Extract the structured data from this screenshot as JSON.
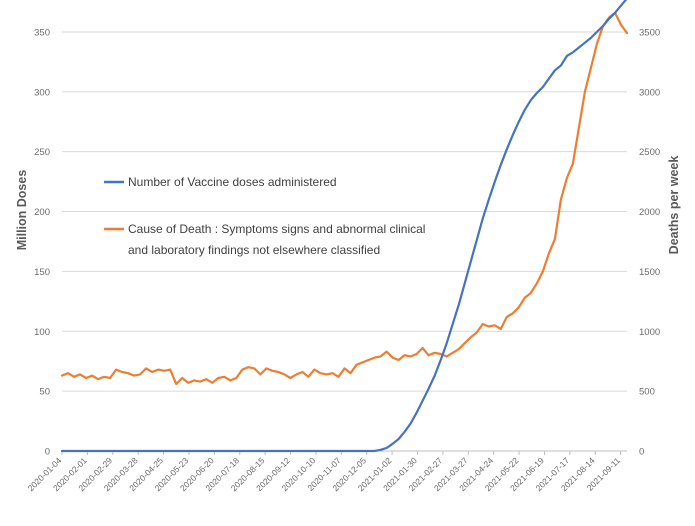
{
  "chart_data": {
    "type": "line",
    "title": "",
    "ylabel_left": "Million Doses",
    "ylabel_right": "Deaths per week",
    "ylim_left": [
      0,
      370
    ],
    "ylim_right": [
      0,
      3700
    ],
    "left_ticks": [
      0,
      50,
      100,
      150,
      200,
      250,
      300,
      350
    ],
    "right_ticks": [
      0,
      500,
      1000,
      1500,
      2000,
      2500,
      3000,
      3500
    ],
    "x_start": "2020-01-04",
    "x_end": "2021-09-18",
    "x_tick_labels": [
      "2020-01-04",
      "2020-02-01",
      "2020-02-29",
      "2020-03-28",
      "2020-04-25",
      "2020-05-23",
      "2020-06-20",
      "2020-07-18",
      "2020-08-15",
      "2020-09-12",
      "2020-10-10",
      "2020-11-07",
      "2020-12-05",
      "2021-01-02",
      "2021-01-30",
      "2021-02-27",
      "2021-03-27",
      "2021-04-24",
      "2021-05-22",
      "2021-06-19",
      "2021-07-17",
      "2021-08-14",
      "2021-09-11"
    ],
    "legend_placement": "center-left",
    "colors": {
      "vaccine": "#4472c4",
      "deaths": "#ed7d31",
      "grid": "#d9d9d9",
      "axis": "#bfbfbf"
    },
    "series": [
      {
        "name": "Number of Vaccine doses administered",
        "legend_lines": [
          "Number of Vaccine doses administered"
        ],
        "axis": "left",
        "values": [
          0,
          0,
          0,
          0,
          0,
          0,
          0,
          0,
          0,
          0,
          0,
          0,
          0,
          0,
          0,
          0,
          0,
          0,
          0,
          0,
          0,
          0,
          0,
          0,
          0,
          0,
          0,
          0,
          0,
          0,
          0,
          0,
          0,
          0,
          0,
          0,
          0,
          0,
          0,
          0,
          0,
          0,
          0,
          0,
          0,
          0,
          0,
          0,
          0,
          0,
          0,
          0,
          0,
          1,
          2.5,
          6,
          10,
          16,
          23,
          32,
          42,
          52,
          63,
          76,
          90,
          106,
          122,
          140,
          158,
          176,
          194,
          210,
          225,
          239,
          252,
          264,
          275,
          285,
          293,
          299,
          304,
          311,
          318,
          322,
          330,
          333,
          337,
          341,
          345,
          350,
          355,
          361,
          366,
          372,
          378
        ]
      },
      {
        "name": "Cause of Death : Symptoms signs and abnormal clinical and laboratory findings not elsewhere classified",
        "legend_lines": [
          "Cause of Death : Symptoms signs and abnormal clinical",
          "and laboratory findings not elsewhere classified"
        ],
        "axis": "right",
        "values": [
          630,
          650,
          620,
          640,
          610,
          630,
          600,
          620,
          610,
          680,
          660,
          650,
          630,
          640,
          690,
          660,
          680,
          670,
          680,
          560,
          610,
          570,
          590,
          580,
          600,
          570,
          610,
          620,
          590,
          610,
          680,
          700,
          690,
          640,
          690,
          670,
          660,
          640,
          610,
          640,
          660,
          620,
          680,
          650,
          640,
          650,
          620,
          690,
          650,
          720,
          740,
          760,
          780,
          790,
          830,
          780,
          760,
          800,
          790,
          810,
          860,
          800,
          820,
          810,
          790,
          820,
          850,
          900,
          950,
          990,
          1060,
          1040,
          1050,
          1020,
          1120,
          1150,
          1200,
          1280,
          1320,
          1400,
          1500,
          1650,
          1770,
          2100,
          2280,
          2400,
          2700,
          3000,
          3200,
          3400,
          3550,
          3620,
          3660,
          3560,
          3490
        ]
      }
    ]
  }
}
